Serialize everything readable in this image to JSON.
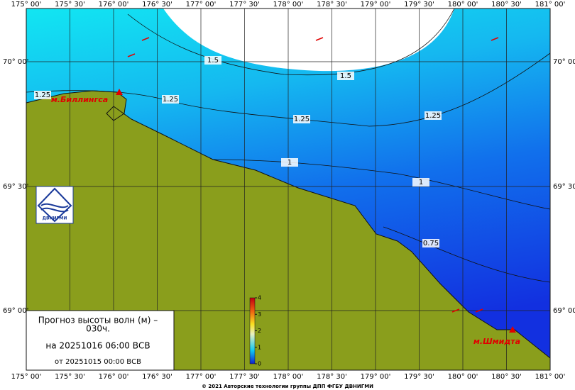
{
  "map": {
    "lon_labels": [
      "175° 00'",
      "175° 30'",
      "176° 00'",
      "176° 30'",
      "177° 00'",
      "177° 30'",
      "178° 00'",
      "178° 30'",
      "179° 00'",
      "179° 30'",
      "180° 00'",
      "180° 30'",
      "181° 00'"
    ],
    "lat_labels": [
      "70° 00'",
      "69° 30'",
      "69° 00'"
    ],
    "contour_labels": [
      "1.5",
      "1.5",
      "1.25",
      "1.25",
      "1.25",
      "1.25",
      "1",
      "1",
      "0.75"
    ],
    "places": [
      "м.Биллингса",
      "м.Шмидта"
    ],
    "legend": {
      "title": "Прогноз высоты волн (м) –",
      "lead": "030ч.",
      "valid": "на 20251016 06:00 ВСВ",
      "issued": "от 20251015 00:00 ВСВ"
    },
    "colorbar": {
      "ticks": [
        0,
        1,
        2,
        3,
        4
      ]
    },
    "logo": "ДВНИГМИ",
    "footer": "© 2021 Авторские технологии группы ДПП ФГБУ ДВНИГМИ"
  }
}
